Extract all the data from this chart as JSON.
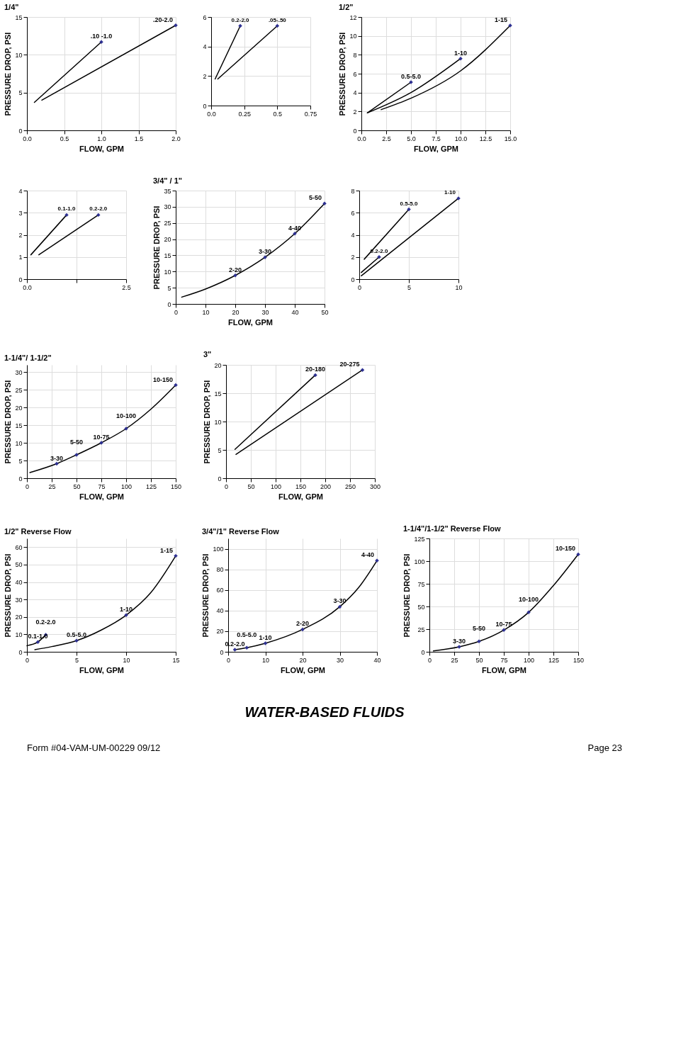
{
  "chart_data": [
    {
      "type": "line",
      "title": "1/4\"",
      "xlabel": "FLOW, GPM",
      "ylabel": "PRESSURE DROP, PSI",
      "xlim": [
        0,
        2
      ],
      "xticks": [
        {
          "value": 0,
          "label": "0.0"
        },
        0.5,
        {
          "value": 1,
          "label": "1.0"
        },
        1.5,
        {
          "value": 2,
          "label": "2.0"
        }
      ],
      "ylim": [
        0,
        15
      ],
      "yticks": [
        0,
        5,
        10,
        15
      ],
      "grid": true,
      "series": [
        {
          "type": "line",
          "color": "#000000",
          "x": [
            0.1,
            1.0
          ],
          "values": [
            3.7,
            11.7
          ]
        },
        {
          "type": "line",
          "color": "#000000",
          "x": [
            0.2,
            2.0
          ],
          "values": [
            4.0,
            13.9
          ]
        },
        {
          "type": "scatter",
          "marker": "diamond",
          "color": "#2e3192",
          "x": [
            1.0,
            2.0
          ],
          "values": [
            11.7,
            13.9
          ]
        }
      ],
      "annotations": [
        {
          "text": ".10 -1.0",
          "x": 1.0,
          "y": 11.7
        },
        {
          "text": ".20-2.0",
          "x": 2.0,
          "y": 13.9
        }
      ]
    },
    {
      "type": "line",
      "xlim": [
        0,
        0.75
      ],
      "xticks": [
        {
          "value": 0,
          "label": "0.0"
        },
        0.25,
        0.5,
        0.75
      ],
      "ylim": [
        0,
        6
      ],
      "yticks": [
        0,
        2,
        4,
        6
      ],
      "grid": true,
      "series": [
        {
          "type": "line",
          "color": "#000000",
          "x": [
            0.03,
            0.22
          ],
          "values": [
            1.8,
            5.4
          ]
        },
        {
          "type": "line",
          "color": "#000000",
          "x": [
            0.05,
            0.5
          ],
          "values": [
            1.8,
            5.4
          ]
        },
        {
          "type": "scatter",
          "marker": "diamond",
          "color": "#2e3192",
          "x": [
            0.22,
            0.5
          ],
          "values": [
            5.4,
            5.4
          ]
        }
      ],
      "annotations": [
        {
          "text": "0.2-2.0",
          "x": 0.22,
          "y": 5.4
        },
        {
          "text": ".05-.50",
          "x": 0.5,
          "y": 5.4
        }
      ]
    },
    {
      "type": "line",
      "title": "1/2\"",
      "xlabel": "FLOW, GPM",
      "ylabel": "PRESSURE DROP, PSI",
      "xlim": [
        0,
        15
      ],
      "xticks": [
        {
          "value": 0,
          "label": "0.0"
        },
        2.5,
        {
          "value": 5,
          "label": "5.0"
        },
        7.5,
        {
          "value": 10,
          "label": "10.0"
        },
        12.5,
        {
          "value": 15,
          "label": "15.0"
        }
      ],
      "ylim": [
        0,
        12
      ],
      "yticks": [
        0,
        2,
        4,
        6,
        8,
        10,
        12
      ],
      "grid": true,
      "series": [
        {
          "type": "line",
          "color": "#000000",
          "x": [
            0.6,
            5
          ],
          "values": [
            1.85,
            5.1
          ]
        },
        {
          "type": "line",
          "color": "#000000",
          "x": [
            0.6,
            5,
            10
          ],
          "values": [
            1.85,
            4.0,
            7.6
          ]
        },
        {
          "type": "line",
          "color": "#000000",
          "x": [
            2,
            5,
            10,
            15
          ],
          "values": [
            2.2,
            3.4,
            6.3,
            11.1
          ]
        },
        {
          "type": "scatter",
          "marker": "diamond",
          "color": "#2e3192",
          "x": [
            5,
            10,
            15
          ],
          "values": [
            5.1,
            7.6,
            11.1
          ]
        }
      ],
      "annotations": [
        {
          "text": "0.5-5.0",
          "x": 5,
          "y": 5.1
        },
        {
          "text": "1-10",
          "x": 10,
          "y": 7.6
        },
        {
          "text": "1-15",
          "x": 15,
          "y": 11.1
        }
      ]
    },
    {
      "type": "line",
      "xlim": [
        0,
        2.5
      ],
      "xticks": [
        {
          "value": 0,
          "label": "0.0"
        },
        {
          "value": 1.25,
          "label": null
        },
        2.5
      ],
      "ylim": [
        0,
        4
      ],
      "yticks": [
        0,
        1,
        2,
        3,
        4
      ],
      "grid": true,
      "series": [
        {
          "type": "line",
          "color": "#000000",
          "x": [
            0.1,
            1.0
          ],
          "values": [
            1.1,
            2.9
          ]
        },
        {
          "type": "line",
          "color": "#000000",
          "x": [
            0.3,
            1.8
          ],
          "values": [
            1.1,
            2.9
          ]
        },
        {
          "type": "scatter",
          "marker": "diamond",
          "color": "#2e3192",
          "x": [
            1.0,
            1.8
          ],
          "values": [
            2.9,
            2.9
          ]
        }
      ],
      "annotations": [
        {
          "text": "0.1-1.0",
          "x": 1.0,
          "y": 2.9
        },
        {
          "text": "0.2-2.0",
          "x": 1.8,
          "y": 2.9
        }
      ]
    },
    {
      "type": "line",
      "title": "3/4\" / 1\"",
      "xlabel": "FLOW, GPM",
      "ylabel": "PRESSURE DROP, PSI",
      "xlim": [
        0,
        50
      ],
      "xticks": [
        0,
        10,
        20,
        30,
        40,
        50
      ],
      "ylim": [
        0,
        35
      ],
      "yticks": [
        0,
        5,
        10,
        15,
        20,
        25,
        30,
        35
      ],
      "grid": true,
      "series": [
        {
          "type": "line",
          "color": "#000000",
          "x": [
            2,
            10,
            20,
            30,
            40,
            50
          ],
          "values": [
            2.1,
            4.6,
            8.8,
            14.4,
            21.7,
            31.0
          ]
        },
        {
          "type": "scatter",
          "marker": "diamond",
          "color": "#2e3192",
          "x": [
            20,
            30,
            40,
            50
          ],
          "values": [
            8.8,
            14.4,
            21.7,
            31.0
          ]
        }
      ],
      "annotations": [
        {
          "text": "2-20",
          "x": 20,
          "y": 8.8
        },
        {
          "text": "3-30",
          "x": 30,
          "y": 14.4
        },
        {
          "text": "4-40",
          "x": 40,
          "y": 21.7
        },
        {
          "text": "5-50",
          "x": 50,
          "y": 31.0
        }
      ]
    },
    {
      "type": "line",
      "xlim": [
        0,
        10
      ],
      "xticks": [
        0,
        5,
        10
      ],
      "ylim": [
        0,
        8
      ],
      "yticks": [
        0,
        2,
        4,
        6,
        8
      ],
      "grid": true,
      "series": [
        {
          "type": "line",
          "color": "#000000",
          "x": [
            0.2,
            2
          ],
          "values": [
            0.6,
            2.0
          ]
        },
        {
          "type": "line",
          "color": "#000000",
          "x": [
            0.5,
            5
          ],
          "values": [
            1.8,
            6.3
          ]
        },
        {
          "type": "line",
          "color": "#000000",
          "x": [
            0.2,
            10
          ],
          "values": [
            0.3,
            7.3
          ]
        },
        {
          "type": "scatter",
          "marker": "diamond",
          "color": "#2e3192",
          "x": [
            2,
            5,
            10
          ],
          "values": [
            2.0,
            6.3,
            7.3
          ]
        }
      ],
      "annotations": [
        {
          "text": "0.2-2.0",
          "x": 2,
          "y": 2.0
        },
        {
          "text": "0.5-5.0",
          "x": 5,
          "y": 6.3
        },
        {
          "text": "1-10",
          "x": 10,
          "y": 7.3
        }
      ]
    },
    {
      "type": "line",
      "title": "1-1/4\"/ 1-1/2\"",
      "xlabel": "FLOW, GPM",
      "ylabel": "PRESSURE DROP, PSI",
      "xlim": [
        0,
        150
      ],
      "xticks": [
        0,
        25,
        50,
        75,
        100,
        125,
        150
      ],
      "ylim": [
        0,
        32
      ],
      "yticks": [
        0,
        5,
        10,
        15,
        20,
        25,
        30
      ],
      "grid": true,
      "series": [
        {
          "type": "line",
          "color": "#000000",
          "x": [
            3,
            30,
            50,
            75,
            100,
            125,
            150
          ],
          "values": [
            1.6,
            4.1,
            6.6,
            10.0,
            14.0,
            19.5,
            26.3
          ]
        },
        {
          "type": "scatter",
          "marker": "diamond",
          "color": "#2e3192",
          "x": [
            30,
            50,
            75,
            100,
            150
          ],
          "values": [
            4.1,
            6.6,
            10.0,
            14.0,
            26.3
          ]
        }
      ],
      "annotations": [
        {
          "text": "3-30",
          "x": 30,
          "y": 4.1
        },
        {
          "text": "5-50",
          "x": 50,
          "y": 6.6
        },
        {
          "text": "10-75",
          "x": 75,
          "y": 10.0
        },
        {
          "text": "10-100",
          "x": 100,
          "y": 14.0
        },
        {
          "text": "10-150",
          "x": 150,
          "y": 26.3
        }
      ]
    },
    {
      "type": "line",
      "title": "3\"",
      "xlabel": "FLOW, GPM",
      "ylabel": "PRESSURE DROP, PSI",
      "xlim": [
        0,
        300
      ],
      "xticks": [
        0,
        50,
        100,
        150,
        200,
        250,
        300
      ],
      "ylim": [
        0,
        20
      ],
      "yticks": [
        0,
        5,
        10,
        15,
        20
      ],
      "grid": true,
      "series": [
        {
          "type": "line",
          "color": "#000000",
          "x": [
            18,
            180
          ],
          "values": [
            5.1,
            18.2
          ]
        },
        {
          "type": "line",
          "color": "#000000",
          "x": [
            20,
            275
          ],
          "values": [
            4.2,
            19.1
          ]
        },
        {
          "type": "scatter",
          "marker": "diamond",
          "color": "#2e3192",
          "x": [
            180,
            275
          ],
          "values": [
            18.2,
            19.1
          ]
        }
      ],
      "annotations": [
        {
          "text": "20-180",
          "x": 180,
          "y": 18.2
        },
        {
          "text": "20-275",
          "x": 275,
          "y": 19.1
        }
      ]
    },
    {
      "type": "line",
      "title": "1/2\" Reverse Flow",
      "xlabel": "FLOW, GPM",
      "ylabel": "PRESSURE DROP, PSI",
      "xlim": [
        0,
        15
      ],
      "xticks": [
        0,
        5,
        10,
        15
      ],
      "ylim": [
        0,
        65
      ],
      "yticks": [
        0,
        10,
        20,
        30,
        40,
        50,
        60
      ],
      "grid": true,
      "series": [
        {
          "type": "line",
          "color": "#000000",
          "x": [
            0,
            1.1,
            1.9
          ],
          "values": [
            3.5,
            5.6,
            9.8
          ]
        },
        {
          "type": "line",
          "color": "#000000",
          "x": [
            0.8,
            2.5,
            5,
            7.5,
            10,
            12.5,
            15
          ],
          "values": [
            1.2,
            3.0,
            6.4,
            12.5,
            21,
            34,
            55
          ]
        },
        {
          "type": "scatter",
          "marker": "diamond",
          "color": "#2e3192",
          "x": [
            1.1,
            1.9,
            5,
            10,
            15
          ],
          "values": [
            5.6,
            9.8,
            6.4,
            21,
            55
          ]
        }
      ],
      "annotations": [
        {
          "text": "0.1-1.0",
          "x": 1.1,
          "y": 5.6
        },
        {
          "text": "0.2-2.0",
          "x": 1.9,
          "y": 9.8
        },
        {
          "text": "0.5-5.0",
          "x": 5,
          "y": 6.4
        },
        {
          "text": "1-10",
          "x": 10,
          "y": 21
        },
        {
          "text": "1-15",
          "x": 15,
          "y": 55
        }
      ]
    },
    {
      "type": "line",
      "title": "3/4\"/1\" Reverse Flow",
      "xlabel": "FLOW, GPM",
      "ylabel": "PRESSURE DROP, PSI",
      "xlim": [
        0,
        40
      ],
      "xticks": [
        0,
        10,
        20,
        30,
        40
      ],
      "ylim": [
        0,
        110
      ],
      "yticks": [
        0,
        20,
        40,
        60,
        80,
        100
      ],
      "grid": true,
      "series": [
        {
          "type": "line",
          "color": "#000000",
          "x": [
            1.8,
            5,
            10,
            20,
            30,
            35,
            40
          ],
          "values": [
            2,
            4,
            8.3,
            21.7,
            43.7,
            62,
            88.5
          ]
        },
        {
          "type": "scatter",
          "marker": "diamond",
          "color": "#2e3192",
          "x": [
            1.8,
            5,
            10,
            20,
            30,
            40
          ],
          "values": [
            2,
            4,
            8.3,
            21.7,
            43.7,
            88.5
          ]
        }
      ],
      "annotations": [
        {
          "text": "0.2-2.0",
          "x": 1.8,
          "y": 2
        },
        {
          "text": "0.5-5.0",
          "x": 5,
          "y": 4
        },
        {
          "text": "1-10",
          "x": 10,
          "y": 8.3
        },
        {
          "text": "2-20",
          "x": 20,
          "y": 21.7
        },
        {
          "text": "3-30",
          "x": 30,
          "y": 43.7
        },
        {
          "text": "4-40",
          "x": 40,
          "y": 88.5
        }
      ]
    },
    {
      "type": "line",
      "title": "1-1/4\"/1-1/2\" Reverse Flow",
      "xlabel": "FLOW, GPM",
      "ylabel": "PRESSURE DROP, PSI",
      "xlim": [
        0,
        150
      ],
      "xticks": [
        0,
        25,
        50,
        75,
        100,
        125,
        150
      ],
      "ylim": [
        0,
        125
      ],
      "yticks": [
        0,
        25,
        50,
        75,
        100,
        125
      ],
      "grid": true,
      "series": [
        {
          "type": "line",
          "color": "#000000",
          "x": [
            4,
            30,
            50,
            75,
            100,
            125,
            150
          ],
          "values": [
            1,
            5.5,
            11.5,
            24,
            43.5,
            73,
            107.5
          ]
        },
        {
          "type": "scatter",
          "marker": "diamond",
          "color": "#2e3192",
          "x": [
            30,
            50,
            75,
            100,
            150
          ],
          "values": [
            5.5,
            11.5,
            24,
            43.5,
            107.5
          ]
        }
      ],
      "annotations": [
        {
          "text": "3-30",
          "x": 30,
          "y": 5.5
        },
        {
          "text": "5-50",
          "x": 50,
          "y": 11.5
        },
        {
          "text": "10-75",
          "x": 75,
          "y": 24
        },
        {
          "text": "10-100",
          "x": 100,
          "y": 43.5
        },
        {
          "text": "10-150",
          "x": 150,
          "y": 107.5
        },
        "WATER-BASED FLUIDS",
        "Form #04-VAM-UM-00229 09/12",
        "Page 23"
      ]
    }
  ]
}
